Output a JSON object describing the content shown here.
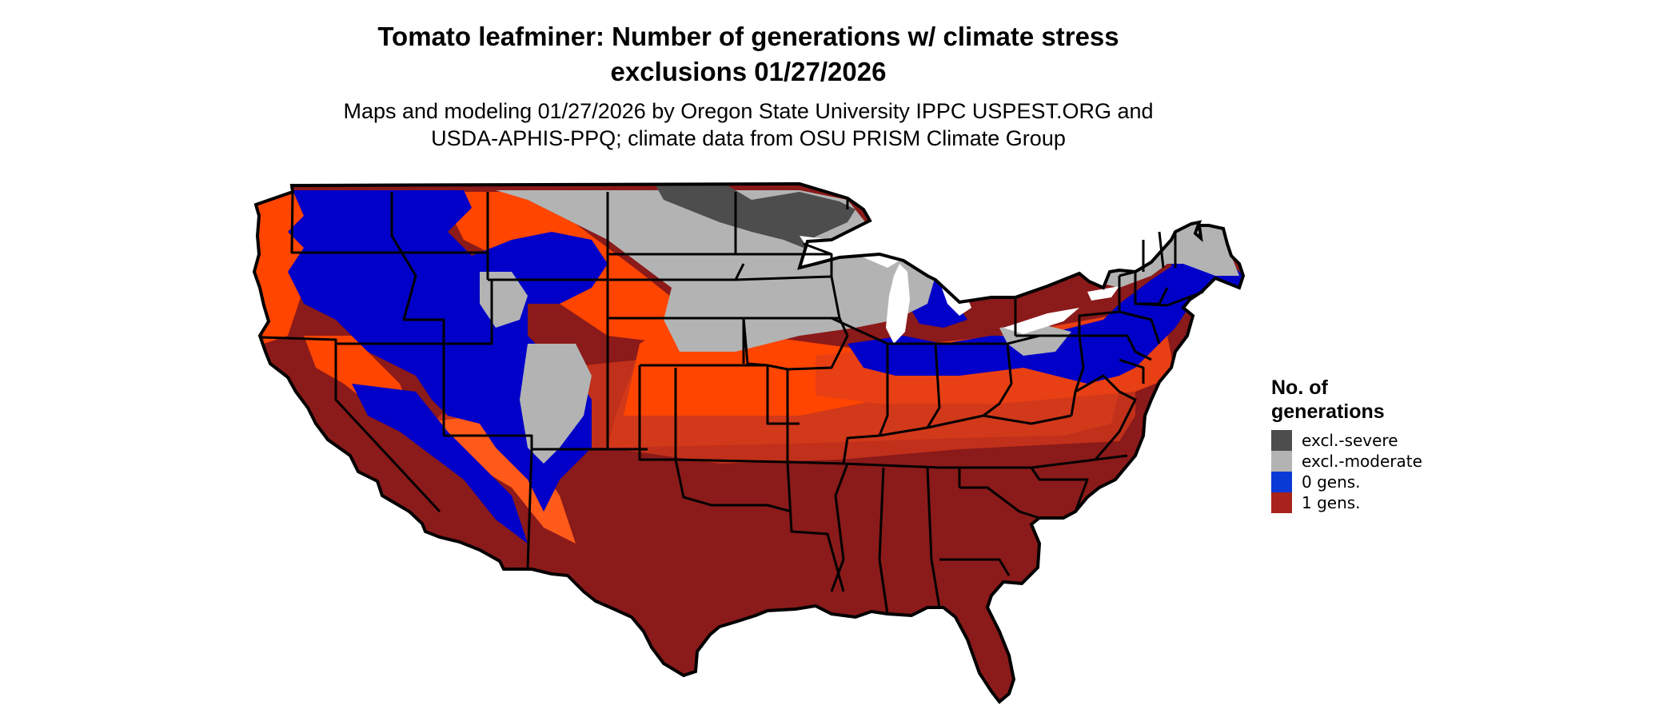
{
  "title": {
    "line1": "Tomato leafminer: Number of generations w/ climate stress",
    "line2": "exclusions 01/27/2026"
  },
  "subtitle": {
    "line1": "Maps and modeling 01/27/2026 by Oregon State University IPPC USPEST.ORG and",
    "line2": "USDA-APHIS-PPQ; climate data from OSU PRISM Climate Group"
  },
  "legend": {
    "title_line1": "No. of",
    "title_line2": "generations",
    "items": [
      {
        "label": "excl.-severe",
        "color": "#4d4d4d"
      },
      {
        "label": "excl.-moderate",
        "color": "#b3b3b3"
      },
      {
        "label": "0 gens.",
        "color": "#0a3ad6"
      },
      {
        "label": "1 gens.",
        "color": "#a8231c"
      }
    ]
  },
  "map_colors": {
    "severe": "#4d4d4d",
    "moderate": "#b3b3b3",
    "zero": "#0000c8",
    "one_dark": "#8b1a1a",
    "one_mid": "#c0301a",
    "one_orange": "#ff4500",
    "one_orange2": "#ff5a1a",
    "border": "#000000"
  }
}
